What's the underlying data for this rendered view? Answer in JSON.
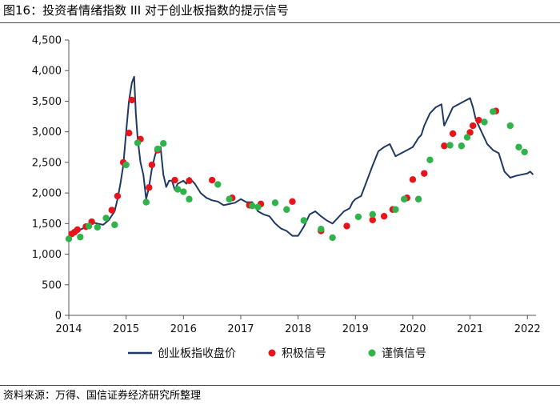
{
  "figure": {
    "title": "图16：投资者情绪指数 III 对于创业板指数的提示信号",
    "source": "资料来源：万得、国信证券经济研究所整理"
  },
  "chart_data": {
    "type": "line",
    "x_ticks": [
      "2014",
      "2015",
      "2016",
      "2017",
      "2018",
      "2019",
      "2020",
      "2021",
      "2022"
    ],
    "y_ticks": [
      "0",
      "500",
      "1,000",
      "1,500",
      "2,000",
      "2,500",
      "3,000",
      "3,500",
      "4,000",
      "4,500"
    ],
    "ylim": [
      0,
      4500
    ],
    "xlim": [
      2014.0,
      2022.15
    ],
    "grid": false,
    "legend_position": "bottom",
    "colors": {
      "line": "#1f3864",
      "bullish": "#e8141b",
      "cautious": "#2fb34a"
    },
    "series": [
      {
        "name": "创业板指收盘价",
        "style": "line",
        "x": [
          2014.0,
          2014.1,
          2014.2,
          2014.3,
          2014.4,
          2014.5,
          2014.6,
          2014.7,
          2014.8,
          2014.85,
          2014.9,
          2014.95,
          2015.0,
          2015.05,
          2015.1,
          2015.14,
          2015.17,
          2015.2,
          2015.25,
          2015.3,
          2015.35,
          2015.4,
          2015.45,
          2015.5,
          2015.55,
          2015.6,
          2015.65,
          2015.7,
          2015.75,
          2015.8,
          2015.85,
          2015.9,
          2016.0,
          2016.05,
          2016.1,
          2016.2,
          2016.3,
          2016.4,
          2016.5,
          2016.6,
          2016.7,
          2016.8,
          2016.9,
          2017.0,
          2017.1,
          2017.2,
          2017.3,
          2017.4,
          2017.5,
          2017.6,
          2017.7,
          2017.8,
          2017.9,
          2018.0,
          2018.1,
          2018.2,
          2018.3,
          2018.4,
          2018.5,
          2018.6,
          2018.7,
          2018.8,
          2018.9,
          2018.95,
          2019.0,
          2019.1,
          2019.2,
          2019.3,
          2019.4,
          2019.5,
          2019.6,
          2019.7,
          2019.8,
          2019.9,
          2020.0,
          2020.1,
          2020.15,
          2020.2,
          2020.3,
          2020.4,
          2020.5,
          2020.55,
          2020.6,
          2020.7,
          2020.8,
          2020.9,
          2021.0,
          2021.05,
          2021.1,
          2021.2,
          2021.3,
          2021.4,
          2021.5,
          2021.55,
          2021.6,
          2021.65,
          2021.7,
          2021.8,
          2021.9,
          2022.0,
          2022.05,
          2022.1
        ],
        "values": [
          1300,
          1340,
          1400,
          1450,
          1520,
          1500,
          1480,
          1560,
          1700,
          1900,
          2150,
          2450,
          3000,
          3500,
          3800,
          3900,
          3300,
          2900,
          2500,
          2300,
          1900,
          2100,
          2400,
          2600,
          2750,
          2750,
          2300,
          2100,
          2200,
          2200,
          2050,
          2150,
          2200,
          2150,
          2250,
          2150,
          2000,
          1920,
          1880,
          1860,
          1800,
          1820,
          1840,
          1900,
          1850,
          1850,
          1700,
          1650,
          1620,
          1500,
          1420,
          1380,
          1300,
          1300,
          1450,
          1650,
          1700,
          1620,
          1550,
          1500,
          1600,
          1700,
          1750,
          1850,
          1900,
          1950,
          2200,
          2450,
          2680,
          2750,
          2800,
          2600,
          2650,
          2700,
          2750,
          2900,
          2950,
          3100,
          3300,
          3400,
          3450,
          3100,
          3200,
          3400,
          3450,
          3500,
          3550,
          3400,
          3200,
          3000,
          2800,
          2700,
          2650,
          2500,
          2350,
          2300,
          2250,
          2280,
          2300,
          2320,
          2350,
          2300
        ]
      },
      {
        "name": "积极信号",
        "style": "markers",
        "x": [
          2014.05,
          2014.1,
          2014.15,
          2014.3,
          2014.4,
          2014.75,
          2014.85,
          2014.95,
          2015.05,
          2015.1,
          2015.25,
          2015.4,
          2015.45,
          2015.55,
          2015.85,
          2016.1,
          2016.5,
          2016.85,
          2017.15,
          2017.35,
          2017.9,
          2018.4,
          2018.85,
          2019.3,
          2019.5,
          2019.65,
          2019.9,
          2020.0,
          2020.2,
          2020.55,
          2020.7,
          2021.0,
          2021.05,
          2021.15,
          2021.45
        ],
        "values": [
          1330,
          1360,
          1400,
          1450,
          1530,
          1720,
          1950,
          2500,
          2980,
          3520,
          2880,
          2090,
          2460,
          2700,
          2210,
          2200,
          2210,
          1920,
          1800,
          1820,
          1860,
          1380,
          1460,
          1560,
          1620,
          1730,
          1920,
          2220,
          2320,
          2770,
          2970,
          2990,
          3100,
          3190,
          3340
        ]
      },
      {
        "name": "谨慎信号",
        "style": "markers",
        "x": [
          2014.0,
          2014.2,
          2014.35,
          2014.5,
          2014.65,
          2014.8,
          2015.0,
          2015.2,
          2015.35,
          2015.55,
          2015.65,
          2015.9,
          2016.0,
          2016.1,
          2016.6,
          2016.8,
          2017.2,
          2017.3,
          2017.6,
          2017.8,
          2018.1,
          2018.4,
          2018.6,
          2019.05,
          2019.3,
          2019.7,
          2019.85,
          2020.1,
          2020.3,
          2020.65,
          2020.85,
          2020.95,
          2021.25,
          2021.4,
          2021.7,
          2021.85,
          2021.95
        ],
        "values": [
          1250,
          1280,
          1460,
          1440,
          1590,
          1480,
          2460,
          2820,
          1850,
          2720,
          2810,
          2060,
          2020,
          1900,
          2140,
          1900,
          1790,
          1770,
          1840,
          1730,
          1550,
          1410,
          1270,
          1610,
          1650,
          1730,
          1900,
          1900,
          2540,
          2780,
          2770,
          2910,
          3160,
          3330,
          3100,
          2750,
          2670
        ]
      }
    ]
  }
}
